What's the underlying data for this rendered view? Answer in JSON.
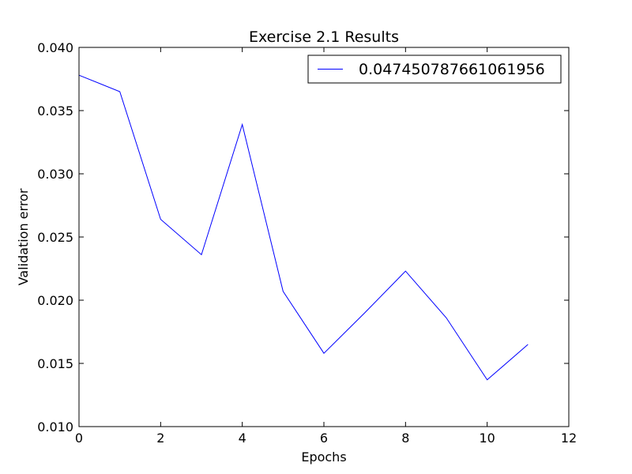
{
  "chart_data": {
    "type": "line",
    "title": "Exercise 2.1 Results",
    "xlabel": "Epochs",
    "ylabel": "Validation error",
    "xlim": [
      0,
      12
    ],
    "ylim": [
      0.01,
      0.04
    ],
    "xticks": [
      0,
      2,
      4,
      6,
      8,
      10,
      12
    ],
    "yticks": [
      0.01,
      0.015,
      0.02,
      0.025,
      0.03,
      0.035,
      0.04
    ],
    "xtick_labels": [
      "0",
      "2",
      "4",
      "6",
      "8",
      "10",
      "12"
    ],
    "ytick_labels": [
      "0.010",
      "0.015",
      "0.020",
      "0.025",
      "0.030",
      "0.035",
      "0.040"
    ],
    "grid": false,
    "legend_position": "top-right",
    "series": [
      {
        "name": "0.047450787661061956",
        "color": "#0000ff",
        "x": [
          0,
          1,
          2,
          3,
          4,
          5,
          6,
          7,
          8,
          9,
          10,
          11
        ],
        "y": [
          0.0378,
          0.0365,
          0.0264,
          0.0236,
          0.0339,
          0.0207,
          0.0158,
          0.019,
          0.0223,
          0.0186,
          0.0137,
          0.0165
        ]
      }
    ]
  }
}
